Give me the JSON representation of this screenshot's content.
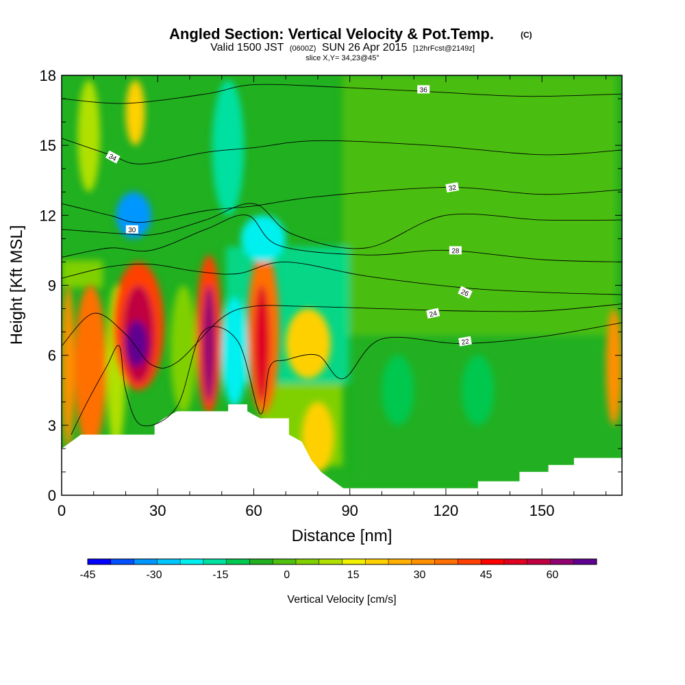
{
  "title": {
    "main": "Angled Section: Vertical Velocity & Pot.Temp.",
    "main_unit": "(C)",
    "valid_a": "Valid 1500 JST",
    "valid_b": "(0600Z)",
    "valid_c": "SUN 26 Apr 2015",
    "valid_d": "[12hrFcst@2149z]",
    "slice": "slice X,Y= 34,23@45°"
  },
  "chart_data": {
    "type": "heatmap",
    "xlabel": "Distance [nm]",
    "ylabel": "Height [Kft MSL]",
    "xlim": [
      0,
      175
    ],
    "ylim": [
      0,
      18
    ],
    "x_ticks": [
      0,
      30,
      60,
      90,
      120,
      150
    ],
    "y_ticks": [
      0,
      3,
      6,
      9,
      12,
      15,
      18
    ],
    "x_tick_labels": [
      "0",
      "30",
      "60",
      "90",
      "120",
      "150"
    ],
    "y_tick_labels": [
      "0",
      "3",
      "6",
      "9",
      "12",
      "15",
      "18"
    ],
    "colorbar": {
      "label": "Vertical Velocity [cm/s]",
      "min": -45,
      "max": 70,
      "step": 5,
      "tick_values": [
        -45,
        -30,
        -15,
        0,
        15,
        30,
        45,
        60
      ],
      "tick_labels": [
        "-45",
        "-30",
        "-15",
        "0",
        "15",
        "30",
        "45",
        "60"
      ],
      "colors": [
        "#0000ff",
        "#0050ff",
        "#0096ff",
        "#00c8ff",
        "#00f0f0",
        "#00e0a0",
        "#00c850",
        "#20b020",
        "#50c010",
        "#80d000",
        "#b0e000",
        "#f0f000",
        "#ffd000",
        "#ffb000",
        "#ff9000",
        "#ff7000",
        "#ff4000",
        "#ff0000",
        "#e00020",
        "#c00040",
        "#900070",
        "#600090"
      ]
    },
    "vertical_velocity_cells": [
      {
        "x": [
          0,
          4
        ],
        "y": [
          2,
          9
        ],
        "value": 25
      },
      {
        "x": [
          4,
          14
        ],
        "y": [
          2,
          9
        ],
        "value": 32
      },
      {
        "x": [
          14,
          20
        ],
        "y": [
          2,
          9
        ],
        "value": 8
      },
      {
        "x": [
          16,
          32
        ],
        "y": [
          4.5,
          10
        ],
        "value": 35
      },
      {
        "x": [
          19,
          29
        ],
        "y": [
          4.8,
          9
        ],
        "value": 50
      },
      {
        "x": [
          20,
          27
        ],
        "y": [
          5.5,
          7.5
        ],
        "value": 65
      },
      {
        "x": [
          34,
          42
        ],
        "y": [
          3.5,
          9
        ],
        "value": 3
      },
      {
        "x": [
          42,
          50
        ],
        "y": [
          3.5,
          10.3
        ],
        "value": 35
      },
      {
        "x": [
          44,
          48
        ],
        "y": [
          4,
          9
        ],
        "value": 55
      },
      {
        "x": [
          50,
          58
        ],
        "y": [
          3.8,
          8.5
        ],
        "value": -22
      },
      {
        "x": [
          58,
          68
        ],
        "y": [
          3.5,
          10.5
        ],
        "value": 30
      },
      {
        "x": [
          60,
          65
        ],
        "y": [
          4,
          9
        ],
        "value": 45
      },
      {
        "x": [
          17,
          28
        ],
        "y": [
          11,
          13
        ],
        "value": -35
      },
      {
        "x": [
          47,
          57
        ],
        "y": [
          12,
          17.8
        ],
        "value": -18
      },
      {
        "x": [
          56,
          70
        ],
        "y": [
          10,
          12
        ],
        "value": -25
      },
      {
        "x": [
          20,
          26
        ],
        "y": [
          15,
          17.8
        ],
        "value": 18
      },
      {
        "x": [
          5,
          12
        ],
        "y": [
          13,
          17.8
        ],
        "value": 5
      },
      {
        "x": [
          70,
          84
        ],
        "y": [
          5,
          8
        ],
        "value": 15
      },
      {
        "x": [
          75,
          85
        ],
        "y": [
          1,
          4
        ],
        "value": 18
      },
      {
        "x": [
          100,
          110
        ],
        "y": [
          3,
          6
        ],
        "value": -15
      },
      {
        "x": [
          125,
          135
        ],
        "y": [
          3,
          6
        ],
        "value": -12
      },
      {
        "x": [
          170,
          175
        ],
        "y": [
          3,
          8
        ],
        "value": 28
      }
    ],
    "theta_contours": [
      {
        "level": 22,
        "label": "22"
      },
      {
        "level": 24,
        "label": "24"
      },
      {
        "level": 26,
        "label": "26"
      },
      {
        "level": 28,
        "label": "28"
      },
      {
        "level": 30,
        "label": "30"
      },
      {
        "level": 32,
        "label": "32"
      },
      {
        "level": 34,
        "label": "34"
      },
      {
        "level": 36,
        "label": "36"
      }
    ],
    "terrain_kft": [
      {
        "x": 0,
        "y": 2.0
      },
      {
        "x": 3,
        "y": 2.3
      },
      {
        "x": 6,
        "y": 2.6
      },
      {
        "x": 29,
        "y": 2.6
      },
      {
        "x": 29,
        "y": 3.0
      },
      {
        "x": 32,
        "y": 3.3
      },
      {
        "x": 36,
        "y": 3.6
      },
      {
        "x": 52,
        "y": 3.6
      },
      {
        "x": 52,
        "y": 3.9
      },
      {
        "x": 58,
        "y": 3.9
      },
      {
        "x": 58,
        "y": 3.6
      },
      {
        "x": 62,
        "y": 3.3
      },
      {
        "x": 71,
        "y": 3.3
      },
      {
        "x": 71,
        "y": 2.6
      },
      {
        "x": 75,
        "y": 2.3
      },
      {
        "x": 78,
        "y": 1.5
      },
      {
        "x": 81,
        "y": 1.0
      },
      {
        "x": 85,
        "y": 0.6
      },
      {
        "x": 88,
        "y": 0.3
      },
      {
        "x": 130,
        "y": 0.3
      },
      {
        "x": 130,
        "y": 0.6
      },
      {
        "x": 143,
        "y": 0.6
      },
      {
        "x": 143,
        "y": 1.0
      },
      {
        "x": 152,
        "y": 1.0
      },
      {
        "x": 152,
        "y": 1.3
      },
      {
        "x": 160,
        "y": 1.3
      },
      {
        "x": 160,
        "y": 1.6
      },
      {
        "x": 175,
        "y": 1.6
      }
    ]
  }
}
